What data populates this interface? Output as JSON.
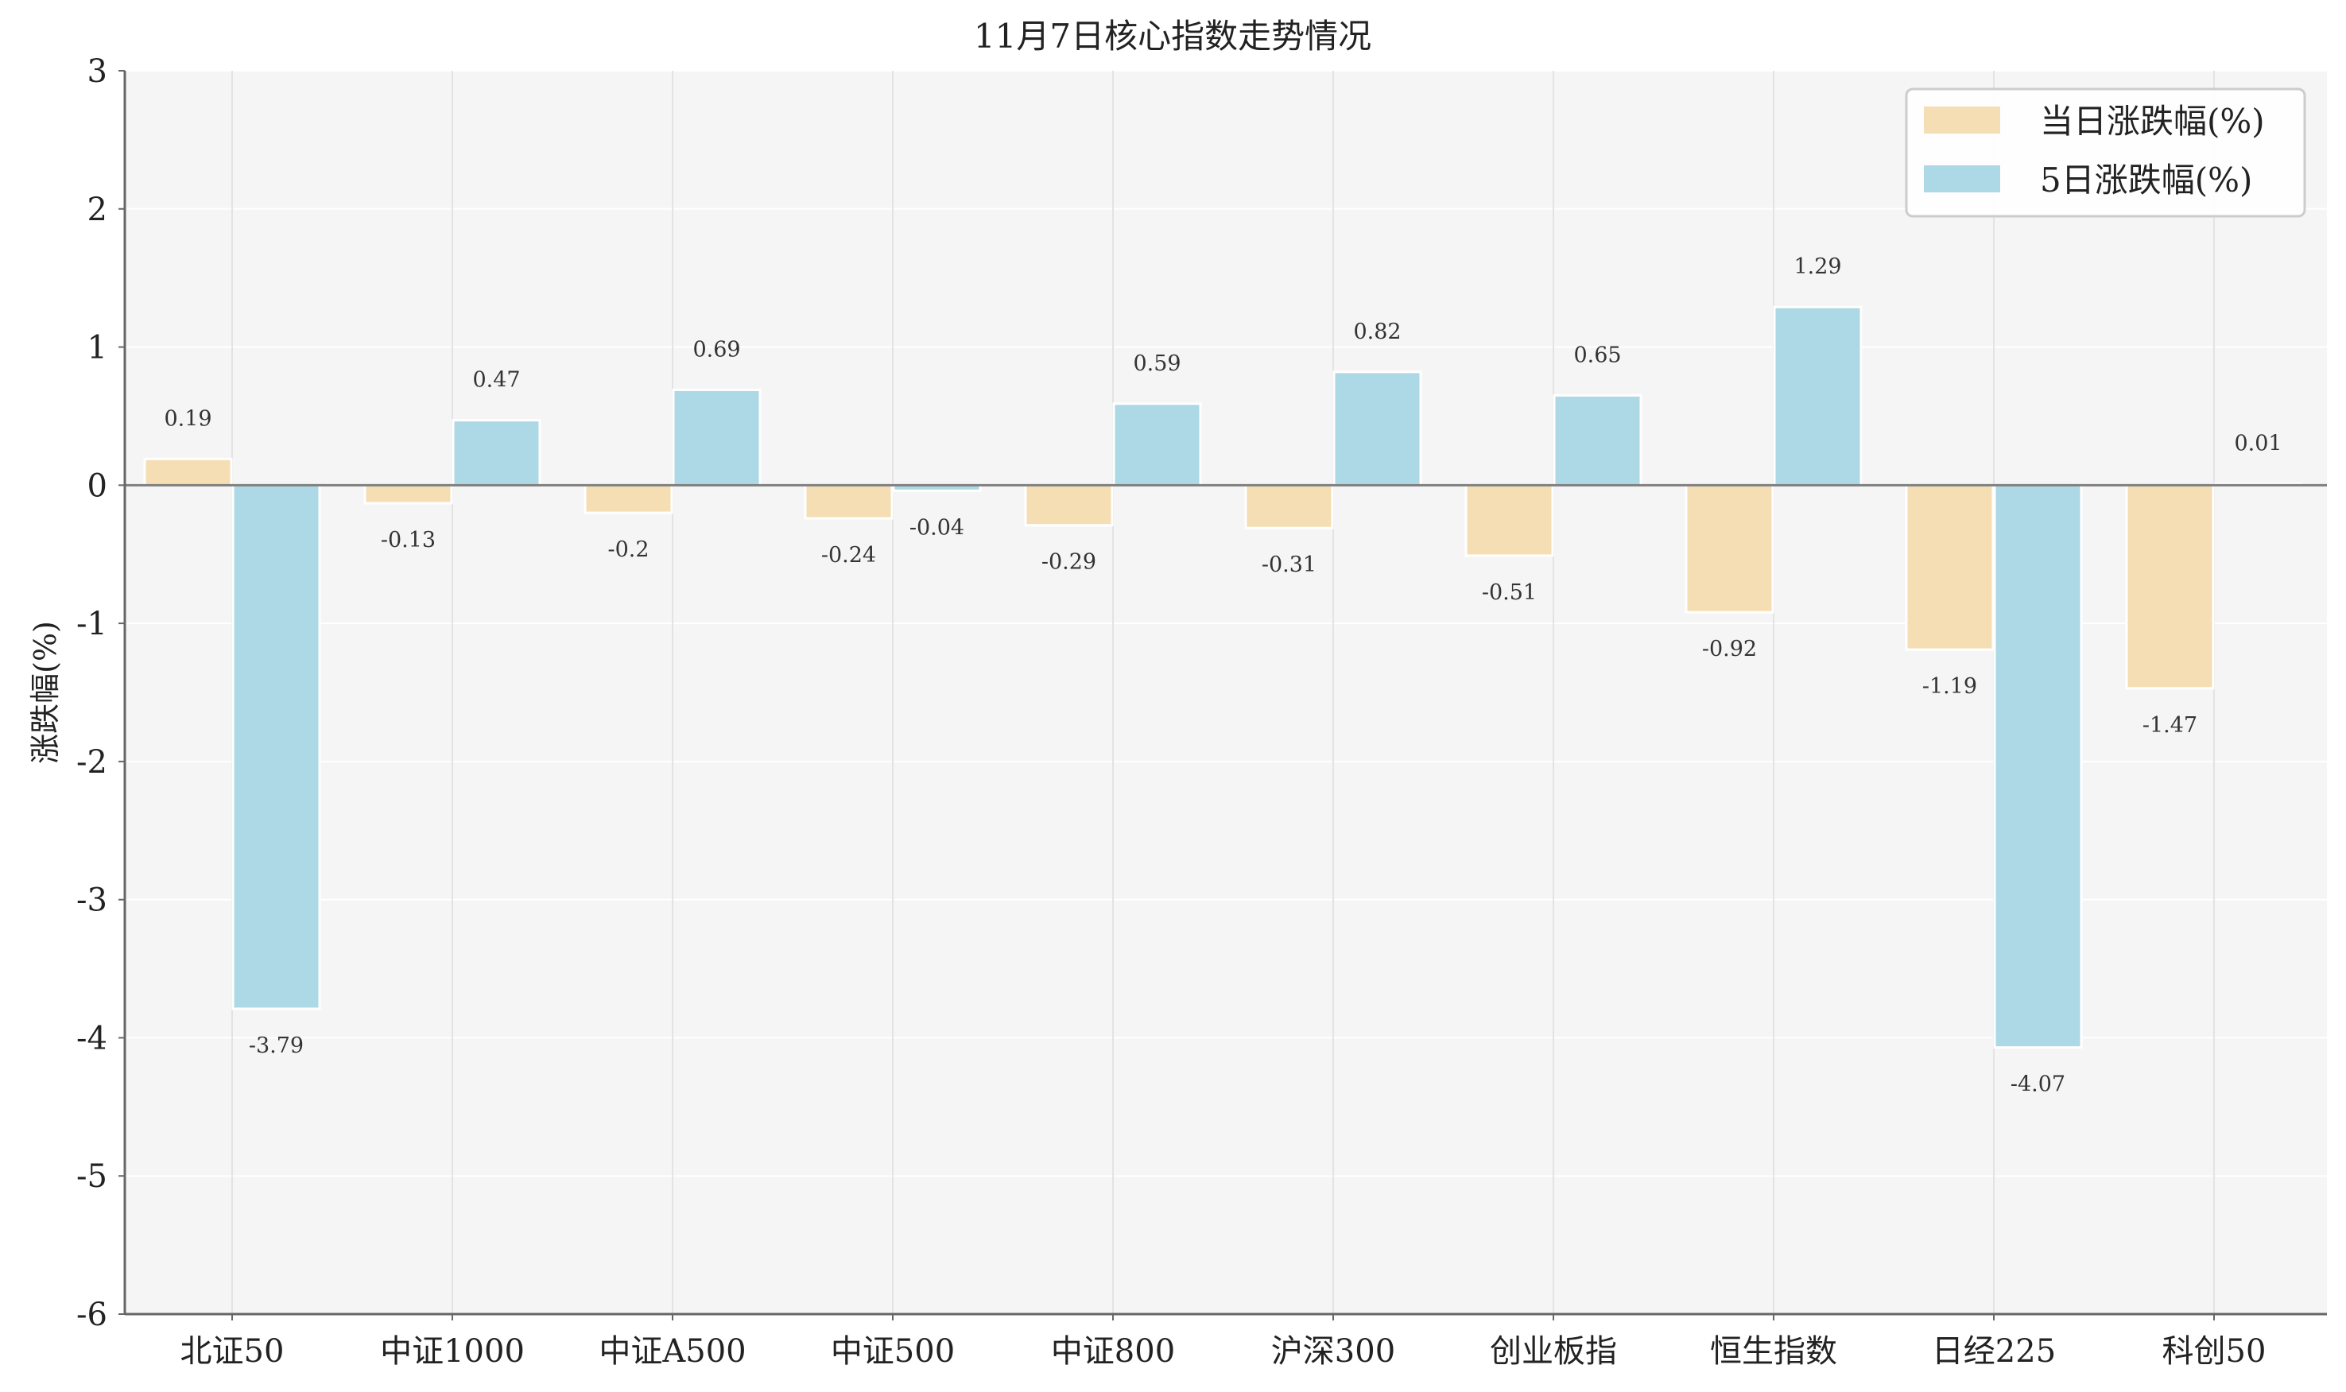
{
  "chart_data": {
    "type": "bar",
    "title": "11月7日核心指数走势情况",
    "ylabel": "涨跌幅(%)",
    "xlabel": "",
    "ylim": [
      -6,
      3
    ],
    "yticks": [
      "3",
      "2",
      "1",
      "0",
      "-1",
      "-2",
      "-3",
      "-4",
      "-5",
      "-6"
    ],
    "categories": [
      "北证50",
      "中证1000",
      "中证A500",
      "中证500",
      "中证800",
      "沪深300",
      "创业板指",
      "恒生指数",
      "日经225",
      "科创50"
    ],
    "series": [
      {
        "name": "当日涨跌幅(%)",
        "color": "#f5deb3",
        "values": [
          0.19,
          -0.13,
          -0.2,
          -0.24,
          -0.29,
          -0.31,
          -0.51,
          -0.92,
          -1.19,
          -1.47
        ],
        "labels": [
          "0.19",
          "-0.13",
          "-0.2",
          "-0.24",
          "-0.29",
          "-0.31",
          "-0.51",
          "-0.92",
          "-1.19",
          "-1.47"
        ]
      },
      {
        "name": "5日涨跌幅(%)",
        "color": "#add8e6",
        "values": [
          -3.79,
          0.47,
          0.69,
          -0.04,
          0.59,
          0.82,
          0.65,
          1.29,
          -4.07,
          0.01
        ],
        "labels": [
          "-3.79",
          "0.47",
          "0.69",
          "-0.04",
          "0.59",
          "0.82",
          "0.65",
          "1.29",
          "-4.07",
          "0.01"
        ]
      }
    ],
    "grid": true,
    "legend_position": "top-right",
    "background_color": "#f5f5f5",
    "zero_line_color": "#808080"
  }
}
